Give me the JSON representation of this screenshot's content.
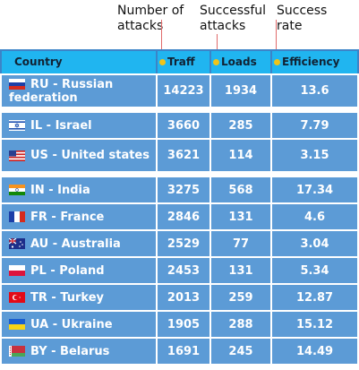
{
  "annotations": {
    "attacks": "Number of\nattacks",
    "loads": "Successful\nattacks",
    "efficiency": "Success\nrate"
  },
  "table": {
    "headers": [
      "Country",
      "Traff",
      "Loads",
      "Efficiency"
    ],
    "rows": [
      {
        "flag": "ru-flag-icon",
        "country": "RU - Russian federation",
        "traff": "14223",
        "loads": "1934",
        "efficiency": "13.6"
      },
      {
        "flag": "il-flag-icon",
        "country": "IL - Israel",
        "traff": "3660",
        "loads": "285",
        "efficiency": "7.79"
      },
      {
        "flag": "us-flag-icon",
        "country": "US - United states",
        "traff": "3621",
        "loads": "114",
        "efficiency": "3.15"
      },
      {
        "flag": "in-flag-icon",
        "country": "IN - India",
        "traff": "3275",
        "loads": "568",
        "efficiency": "17.34"
      },
      {
        "flag": "fr-flag-icon",
        "country": "FR - France",
        "traff": "2846",
        "loads": "131",
        "efficiency": "4.6"
      },
      {
        "flag": "au-flag-icon",
        "country": "AU - Australia",
        "traff": "2529",
        "loads": "77",
        "efficiency": "3.04"
      },
      {
        "flag": "pl-flag-icon",
        "country": "PL - Poland",
        "traff": "2453",
        "loads": "131",
        "efficiency": "5.34"
      },
      {
        "flag": "tr-flag-icon",
        "country": "TR - Turkey",
        "traff": "2013",
        "loads": "259",
        "efficiency": "12.87"
      },
      {
        "flag": "ua-flag-icon",
        "country": "UA - Ukraine",
        "traff": "1905",
        "loads": "288",
        "efficiency": "15.12"
      },
      {
        "flag": "by-flag-icon",
        "country": "BY - Belarus",
        "traff": "1691",
        "loads": "245",
        "efficiency": "14.49"
      }
    ]
  },
  "colors": {
    "header_bg": "#20b5f0",
    "cell_bg": "#5c9bd6",
    "dot": "#f0c419",
    "pointer": "#e06b6b"
  }
}
